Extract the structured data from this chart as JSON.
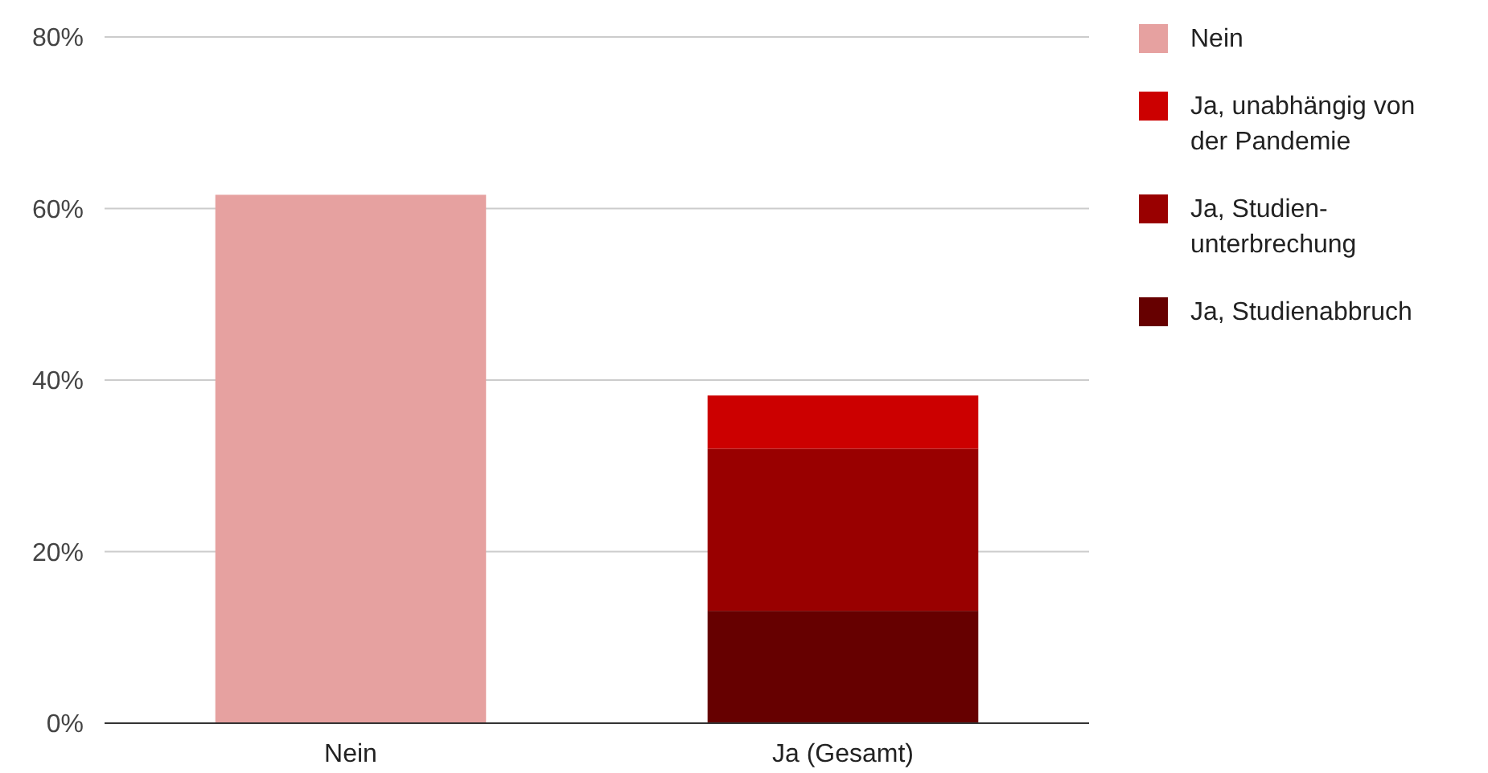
{
  "chart_data": {
    "type": "bar",
    "stacked": true,
    "categories": [
      "Nein",
      "Ja (Gesamt)"
    ],
    "series": [
      {
        "name": "Ja, Studienabbruch",
        "color": "#660000",
        "values": [
          null,
          13.1
        ]
      },
      {
        "name": "Ja, Studien-unterbrechung",
        "color": "#990000",
        "values": [
          null,
          18.9
        ]
      },
      {
        "name": "Ja, unabhängig von der Pandemie",
        "color": "#cc0000",
        "values": [
          null,
          6.2
        ]
      },
      {
        "name": "Nein",
        "color": "#e6a1a0",
        "values": [
          61.6,
          null
        ]
      }
    ],
    "ylim": [
      0,
      80
    ],
    "yticks": [
      {
        "value": 0,
        "label": "0%"
      },
      {
        "value": 20,
        "label": "20%"
      },
      {
        "value": 40,
        "label": "40%"
      },
      {
        "value": 60,
        "label": "60%"
      },
      {
        "value": 80,
        "label": "80%"
      }
    ],
    "grid": "y",
    "legend": "right"
  }
}
